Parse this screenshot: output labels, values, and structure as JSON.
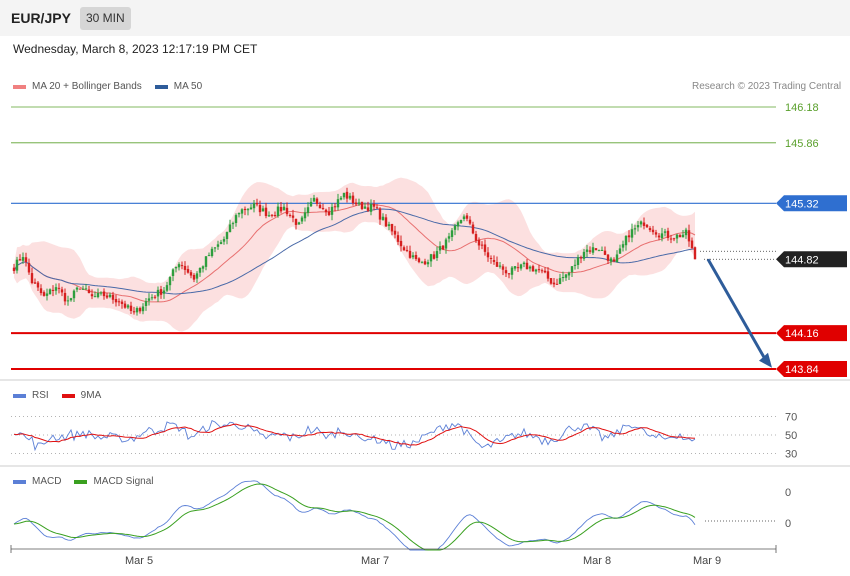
{
  "header": {
    "symbol": "EUR/JPY",
    "timeframe": "30 MIN",
    "datetime": "Wednesday, March 8, 2023 12:17:19 PM CET",
    "credit": "Research © 2023 Trading Central"
  },
  "legends": {
    "price": [
      {
        "label": "MA 20 + Bollinger Bands",
        "color": "#f08080"
      },
      {
        "label": "MA 50",
        "color": "#2e5c9a"
      }
    ],
    "rsi": [
      {
        "label": "RSI",
        "color": "#5b7fd6"
      },
      {
        "label": "9MA",
        "color": "#e01010"
      }
    ],
    "macd": [
      {
        "label": "MACD",
        "color": "#5b7fd6"
      },
      {
        "label": "MACD Signal",
        "color": "#3aa020"
      }
    ]
  },
  "chart_data": [
    {
      "type": "candlestick",
      "panel": "price",
      "ylim": [
        143.7,
        146.25
      ],
      "x_tick_labels": [
        "Mar 5",
        "Mar 7",
        "Mar 8",
        "Mar 9"
      ],
      "levels": [
        {
          "label": "146.18",
          "value": 146.18,
          "kind": "target",
          "color": "#5aa02c"
        },
        {
          "label": "145.86",
          "value": 145.86,
          "kind": "target",
          "color": "#5aa02c"
        },
        {
          "label": "145.32",
          "value": 145.32,
          "kind": "resistance",
          "color": "#2f6fd0"
        },
        {
          "label": "144.82",
          "value": 144.82,
          "kind": "last-price",
          "color": "#222222"
        },
        {
          "label": "144.16",
          "value": 144.16,
          "kind": "support",
          "color": "#e00000"
        },
        {
          "label": "143.84",
          "value": 143.84,
          "kind": "support",
          "color": "#e00000"
        }
      ],
      "forecast_arrow": {
        "from": 144.82,
        "to": 143.86,
        "color": "#2e5c9a"
      },
      "close_anchors": [
        [
          0,
          144.75
        ],
        [
          3,
          144.86
        ],
        [
          6,
          144.62
        ],
        [
          10,
          144.48
        ],
        [
          14,
          144.58
        ],
        [
          18,
          144.44
        ],
        [
          22,
          144.58
        ],
        [
          26,
          144.48
        ],
        [
          30,
          144.5
        ],
        [
          35,
          144.45
        ],
        [
          40,
          144.33
        ],
        [
          45,
          144.47
        ],
        [
          50,
          144.55
        ],
        [
          55,
          144.8
        ],
        [
          60,
          144.65
        ],
        [
          65,
          144.86
        ],
        [
          70,
          145.0
        ],
        [
          75,
          145.25
        ],
        [
          80,
          145.3
        ],
        [
          85,
          145.22
        ],
        [
          90,
          145.28
        ],
        [
          95,
          145.12
        ],
        [
          100,
          145.35
        ],
        [
          105,
          145.25
        ],
        [
          110,
          145.4
        ],
        [
          115,
          145.3
        ],
        [
          120,
          145.28
        ],
        [
          125,
          145.1
        ],
        [
          130,
          144.92
        ],
        [
          135,
          144.78
        ],
        [
          140,
          144.85
        ],
        [
          145,
          145.0
        ],
        [
          150,
          145.22
        ],
        [
          155,
          144.95
        ],
        [
          160,
          144.78
        ],
        [
          165,
          144.7
        ],
        [
          170,
          144.76
        ],
        [
          175,
          144.72
        ],
        [
          180,
          144.6
        ],
        [
          185,
          144.7
        ],
        [
          190,
          144.9
        ],
        [
          195,
          144.92
        ],
        [
          200,
          144.78
        ],
        [
          205,
          145.05
        ],
        [
          210,
          145.15
        ],
        [
          215,
          145.05
        ],
        [
          220,
          145.02
        ],
        [
          224,
          145.05
        ],
        [
          226,
          144.92
        ],
        [
          227,
          144.82
        ]
      ]
    },
    {
      "type": "line",
      "panel": "rsi",
      "series": [
        {
          "name": "RSI"
        },
        {
          "name": "9MA"
        }
      ],
      "y_ticks": [
        70,
        50,
        30
      ],
      "ylim": [
        25,
        80
      ]
    },
    {
      "type": "line",
      "panel": "macd",
      "series": [
        {
          "name": "MACD"
        },
        {
          "name": "MACD Signal"
        }
      ],
      "y_tick_labels": [
        "0",
        "0"
      ]
    }
  ]
}
